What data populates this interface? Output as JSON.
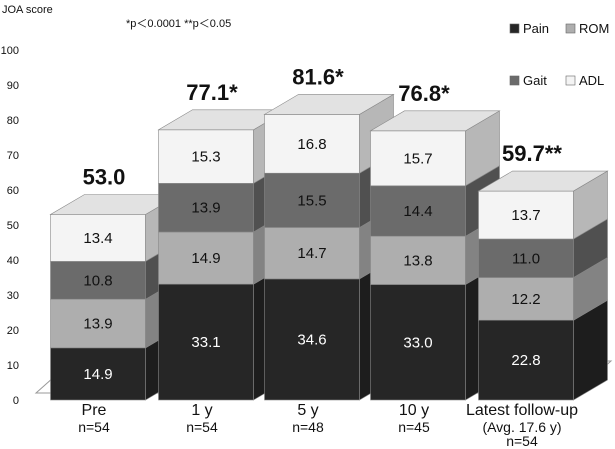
{
  "chart_data": {
    "type": "bar",
    "stacked": true,
    "ylabel": "JOA score",
    "ylim": [
      0,
      100
    ],
    "yticks": [
      0,
      10,
      20,
      30,
      40,
      50,
      60,
      70,
      80,
      90,
      100
    ],
    "note": "*p＜0.0001 **p＜0.05",
    "legend_position": "top-right",
    "categories": [
      {
        "label": "Pre",
        "sub": [
          "n=54"
        ]
      },
      {
        "label": "1 y",
        "sub": [
          "n=54"
        ]
      },
      {
        "label": "5 y",
        "sub": [
          "n=48"
        ]
      },
      {
        "label": "10 y",
        "sub": [
          "n=45"
        ]
      },
      {
        "label": "Latest follow-up",
        "sub": [
          "(Avg. 17.6 y)",
          "n=54"
        ]
      }
    ],
    "totals": [
      "53.0",
      "77.1*",
      "81.6*",
      "76.8*",
      "59.7**"
    ],
    "series": [
      {
        "name": "Pain",
        "color": "#262626",
        "text_color": "#ffffff",
        "values": [
          14.9,
          33.1,
          34.6,
          33.0,
          22.8
        ],
        "labels": [
          "14.9",
          "33.1",
          "34.6",
          "33.0",
          "22.8"
        ]
      },
      {
        "name": "ROM",
        "color": "#aeaeae",
        "text_color": "#111111",
        "values": [
          13.9,
          14.9,
          14.7,
          13.8,
          12.2
        ],
        "labels": [
          "13.9",
          "14.9",
          "14.7",
          "13.8",
          "12.2"
        ]
      },
      {
        "name": "Gait",
        "color": "#6b6b6b",
        "text_color": "#111111",
        "values": [
          10.8,
          13.9,
          15.5,
          14.4,
          11.0
        ],
        "labels": [
          "10.8",
          "13.9",
          "15.5",
          "14.4",
          "11.0"
        ]
      },
      {
        "name": "ADL",
        "color": "#f4f4f4",
        "text_color": "#111111",
        "values": [
          13.4,
          15.3,
          16.8,
          15.7,
          13.7
        ],
        "labels": [
          "13.4",
          "15.3",
          "16.8",
          "15.7",
          "13.7"
        ]
      }
    ],
    "legend": [
      {
        "name": "Pain",
        "color": "#262626"
      },
      {
        "name": "ROM",
        "color": "#aeaeae"
      },
      {
        "name": "Gait",
        "color": "#6b6b6b"
      },
      {
        "name": "ADL",
        "color": "#f4f4f4"
      }
    ]
  }
}
